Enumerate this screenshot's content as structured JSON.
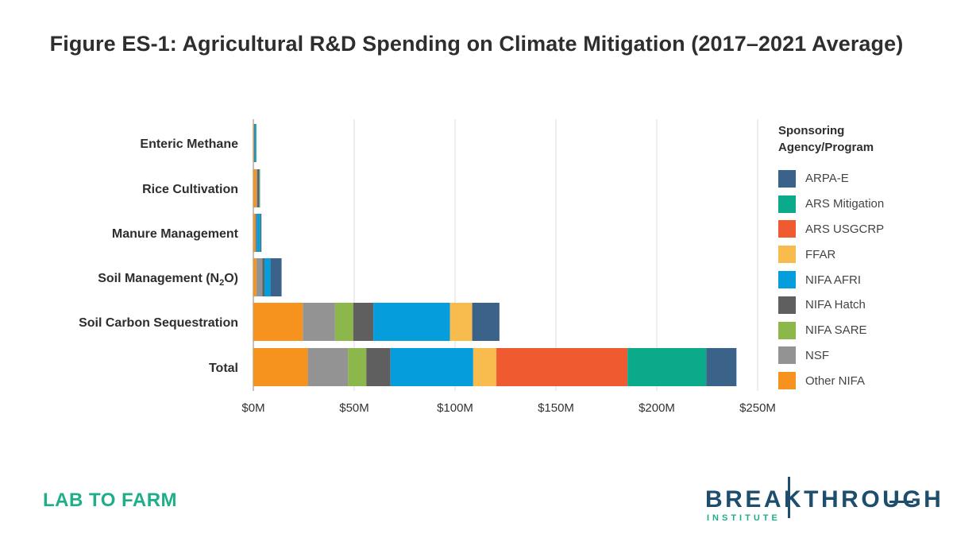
{
  "title": "Figure ES-1: Agricultural R&D Spending on Climate Mitigation (2017–2021 Average)",
  "footer": {
    "left_text": "LAB TO FARM",
    "logo_text": "BREAKTHROUGH",
    "logo_sub": "INSTITUTE"
  },
  "chart_data": {
    "type": "bar",
    "orientation": "horizontal",
    "stacked": true,
    "title": "Figure ES-1: Agricultural R&D Spending on Climate Mitigation (2017–2021 Average)",
    "xlabel": "",
    "ylabel": "",
    "xlim": [
      0,
      250
    ],
    "x_unit": "million USD",
    "grid": true,
    "ticks": [
      "$0M",
      "$50M",
      "$100M",
      "$150M",
      "$200M",
      "$250M"
    ],
    "tick_values": [
      0,
      50,
      100,
      150,
      200,
      250
    ],
    "categories": [
      "Enteric Methane",
      "Rice Cultivation",
      "Manure Management",
      "Soil Management (N2O)",
      "Soil Carbon Sequestration",
      "Total"
    ],
    "legend_title": "Sponsoring Agency/Program",
    "legend_position": "right",
    "legend": [
      "ARPA-E",
      "ARS Mitigation",
      "ARS USGCRP",
      "FFAR",
      "NIFA AFRI",
      "NIFA Hatch",
      "NIFA SARE",
      "NSF",
      "Other NIFA"
    ],
    "series": [
      {
        "name": "Other NIFA",
        "color": "#f6921e",
        "values": [
          0.3,
          1.5,
          1.0,
          1.5,
          24.5,
          27.0
        ]
      },
      {
        "name": "NSF",
        "color": "#939393",
        "values": [
          0.2,
          0.5,
          0.3,
          3.0,
          16.0,
          20.0
        ]
      },
      {
        "name": "NIFA SARE",
        "color": "#8cb84b",
        "values": [
          0.0,
          0.0,
          0.0,
          0.0,
          9.0,
          9.0
        ]
      },
      {
        "name": "NIFA Hatch",
        "color": "#5f5f5f",
        "values": [
          0.2,
          0.8,
          0.4,
          1.0,
          10.0,
          12.0
        ]
      },
      {
        "name": "NIFA AFRI",
        "color": "#069ddd",
        "values": [
          0.5,
          0.4,
          1.5,
          3.0,
          38.0,
          41.0
        ]
      },
      {
        "name": "FFAR",
        "color": "#f8bb4e",
        "values": [
          0.0,
          0.3,
          0.0,
          0.0,
          11.0,
          11.5
        ]
      },
      {
        "name": "ARS USGCRP",
        "color": "#f05a31",
        "values": [
          0.0,
          0.0,
          0.0,
          0.0,
          0.0,
          65.0
        ]
      },
      {
        "name": "ARS Mitigation",
        "color": "#0aaa8a",
        "values": [
          0.3,
          0.0,
          0.3,
          0.0,
          0.0,
          39.0
        ]
      },
      {
        "name": "ARPA-E",
        "color": "#3b6289",
        "values": [
          0.0,
          0.0,
          0.5,
          5.5,
          13.5,
          15.0
        ]
      }
    ]
  }
}
